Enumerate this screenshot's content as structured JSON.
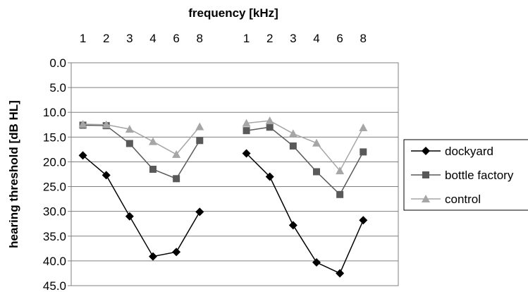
{
  "chart_data": {
    "type": "line",
    "xlabel": "frequency [kHz]",
    "ylabel": "hearing threshold [dB HL]",
    "y_axis": {
      "min": 0,
      "max": 45,
      "step": 5,
      "reversed": true,
      "tick_labels": [
        "0.0",
        "5.0",
        "10.0",
        "15.0",
        "20.0",
        "25.0",
        "30.0",
        "35.0",
        "40.0",
        "45.0"
      ]
    },
    "x_tick_labels": [
      "1",
      "2",
      "3",
      "4",
      "6",
      "8",
      "1",
      "2",
      "3",
      "4",
      "6",
      "8"
    ],
    "grid": "horizontal",
    "legend_position": "right",
    "groups": 2,
    "series": [
      {
        "name": "dockyard",
        "color": "#000000",
        "marker": "diamond",
        "groups": [
          [
            18.7,
            22.7,
            31.0,
            39.1,
            38.2,
            30.1
          ],
          [
            18.3,
            23.0,
            32.8,
            40.3,
            42.5,
            31.8
          ]
        ]
      },
      {
        "name": "bottle factory",
        "color": "#595959",
        "marker": "square",
        "groups": [
          [
            12.6,
            12.7,
            16.3,
            21.5,
            23.4,
            15.7
          ],
          [
            13.7,
            13.0,
            16.8,
            22.0,
            26.6,
            18.0
          ]
        ]
      },
      {
        "name": "control",
        "color": "#a6a6a6",
        "marker": "triangle",
        "groups": [
          [
            12.4,
            12.5,
            13.4,
            15.9,
            18.5,
            12.9
          ],
          [
            12.2,
            11.7,
            14.3,
            16.2,
            21.8,
            13.1
          ]
        ]
      }
    ]
  }
}
